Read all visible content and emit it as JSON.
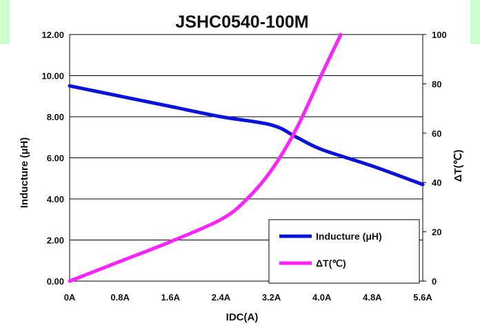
{
  "chart_data": {
    "type": "line",
    "title": "JSHC0540-100M",
    "xlabel": "IDC(A)",
    "ylabel": "Inducture (μH)",
    "y2label": "ΔT(℃)",
    "xlim": [
      0,
      5.6
    ],
    "ylim": [
      0,
      12
    ],
    "y2lim": [
      0,
      100
    ],
    "x_ticks": [
      "0A",
      "0.8A",
      "1.6A",
      "2.4A",
      "3.2A",
      "4.0A",
      "4.8A",
      "5.6A"
    ],
    "y_ticks": [
      "0.00",
      "2.00",
      "4.00",
      "6.00",
      "8.00",
      "10.00",
      "12.00"
    ],
    "y2_ticks": [
      "0",
      "20",
      "40",
      "60",
      "80",
      "100"
    ],
    "grid": "horizontal",
    "legend_position": "bottom-right",
    "series": [
      {
        "name": "Inducture (μH)",
        "axis": "left",
        "color": "#0a14d8",
        "x": [
          0,
          0.8,
          1.6,
          2.4,
          3.2,
          3.6,
          4.0,
          4.8,
          5.6
        ],
        "y": [
          9.5,
          9.0,
          8.5,
          8.0,
          7.6,
          7.0,
          6.4,
          5.6,
          4.7
        ]
      },
      {
        "name": "ΔT(℃)",
        "axis": "right",
        "color": "#ff22ff",
        "x": [
          0,
          0.8,
          1.6,
          2.4,
          2.8,
          3.2,
          3.6,
          4.0,
          4.3
        ],
        "y": [
          0,
          8,
          16,
          25,
          33,
          45,
          62,
          84,
          100
        ]
      }
    ]
  }
}
